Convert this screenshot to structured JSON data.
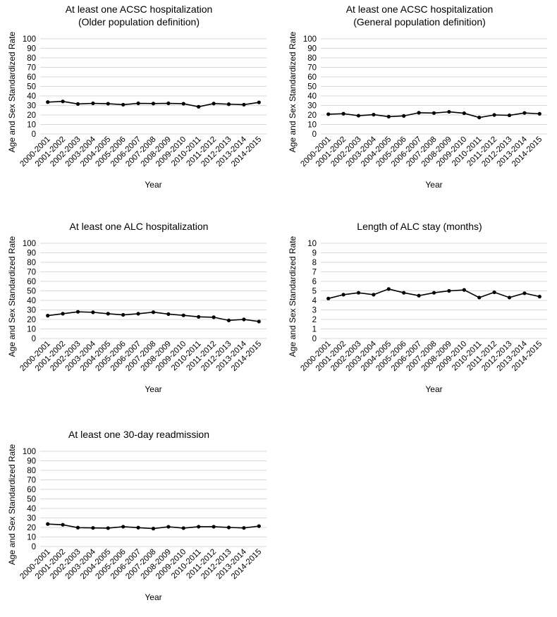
{
  "chart_data": [
    {
      "type": "line",
      "title": "At least one ACSC hospitalization",
      "subtitle": "(Older population definition)",
      "xlabel": "Year",
      "ylabel": "Age and Sex Standardized Rate",
      "ylim": [
        0,
        100
      ],
      "yticks": [
        0,
        10,
        20,
        30,
        40,
        50,
        60,
        70,
        80,
        90,
        100
      ],
      "grid": true,
      "categories": [
        "2000-2001",
        "2001-2002",
        "2002-2003",
        "2003-2004",
        "2004-2005",
        "2005-2006",
        "2006-2007",
        "2007-2008",
        "2008-2009",
        "2009-2010",
        "2010-2011",
        "2011-2012",
        "2012-2013",
        "2013-2014",
        "2014-2015"
      ],
      "series": [
        {
          "values": [
            33.5,
            34.2,
            31.5,
            32.2,
            31.8,
            30.8,
            32.2,
            32.0,
            32.2,
            31.8,
            28.6,
            32.0,
            31.3,
            30.8,
            33.2
          ]
        }
      ]
    },
    {
      "type": "line",
      "title": "At least one ACSC hospitalization",
      "subtitle": "(General population definition)",
      "xlabel": "Year",
      "ylabel": "Age and Sex Standardized Rate",
      "ylim": [
        0,
        100
      ],
      "yticks": [
        0,
        10,
        20,
        30,
        40,
        50,
        60,
        70,
        80,
        90,
        100
      ],
      "grid": true,
      "categories": [
        "2000-2001",
        "2001-2002",
        "2002-2003",
        "2003-2004",
        "2004-2005",
        "2005-2006",
        "2006-2007",
        "2007-2008",
        "2008-2009",
        "2009-2010",
        "2010-2011",
        "2011-2012",
        "2012-2013",
        "2013-2014",
        "2014-2015"
      ],
      "series": [
        {
          "values": [
            20.8,
            21.3,
            19.2,
            20.3,
            18.2,
            19.0,
            22.3,
            22.0,
            23.3,
            21.8,
            17.3,
            20.0,
            19.6,
            22.1,
            21.2
          ]
        }
      ]
    },
    {
      "type": "line",
      "title": "At least one ALC hospitalization",
      "subtitle": "",
      "xlabel": "Year",
      "ylabel": "Age and Sex Standardized Rate",
      "ylim": [
        0,
        100
      ],
      "yticks": [
        0,
        10,
        20,
        30,
        40,
        50,
        60,
        70,
        80,
        90,
        100
      ],
      "grid": true,
      "categories": [
        "2000-2001",
        "2001-2002",
        "2002-2003",
        "2003-2004",
        "2004-2005",
        "2005-2006",
        "2006-2007",
        "2007-2008",
        "2008-2009",
        "2009-2010",
        "2010-2011",
        "2011-2012",
        "2012-2013",
        "2013-2014",
        "2014-2015"
      ],
      "series": [
        {
          "values": [
            24.0,
            26.0,
            28.0,
            27.5,
            26.0,
            24.8,
            26.0,
            27.6,
            25.6,
            24.3,
            22.7,
            22.3,
            19.0,
            20.0,
            17.8
          ]
        }
      ]
    },
    {
      "type": "line",
      "title": "Length of ALC stay (months)",
      "subtitle": "",
      "xlabel": "Year",
      "ylabel": "Age and Sex Standardized Rate",
      "ylim": [
        0,
        10
      ],
      "yticks": [
        0,
        1,
        2,
        3,
        4,
        5,
        6,
        7,
        8,
        9,
        10
      ],
      "grid": true,
      "categories": [
        "2000-2001",
        "2001-2002",
        "2002-2003",
        "2003-2004",
        "2004-2005",
        "2005-2006",
        "2006-2007",
        "2007-2008",
        "2008-2009",
        "2009-2010",
        "2010-2011",
        "2011-2012",
        "2012-2013",
        "2013-2014",
        "2014-2015"
      ],
      "series": [
        {
          "values": [
            4.2,
            4.6,
            4.8,
            4.6,
            5.2,
            4.8,
            4.5,
            4.8,
            5.0,
            5.1,
            4.3,
            4.85,
            4.3,
            4.75,
            4.4
          ]
        }
      ]
    },
    {
      "type": "line",
      "title": "At least one 30-day readmission",
      "subtitle": "",
      "xlabel": "Year",
      "ylabel": "Age and Sex Standardized Rate",
      "ylim": [
        0,
        100
      ],
      "yticks": [
        0,
        10,
        20,
        30,
        40,
        50,
        60,
        70,
        80,
        90,
        100
      ],
      "grid": true,
      "categories": [
        "2000-2001",
        "2001-2002",
        "2002-2003",
        "2003-2004",
        "2004-2005",
        "2005-2006",
        "2006-2007",
        "2007-2008",
        "2008-2009",
        "2009-2010",
        "2010-2011",
        "2011-2012",
        "2012-2013",
        "2013-2014",
        "2014-2015"
      ],
      "series": [
        {
          "values": [
            23.6,
            22.8,
            19.8,
            19.5,
            19.3,
            20.8,
            19.8,
            18.8,
            20.7,
            19.3,
            20.8,
            20.8,
            20.0,
            19.5,
            21.4
          ]
        }
      ]
    }
  ]
}
